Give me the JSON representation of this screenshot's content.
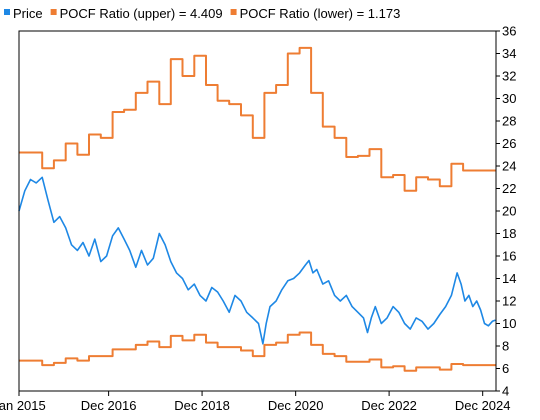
{
  "chart_data": {
    "type": "line",
    "title": "",
    "xlabel": "",
    "ylabel": "",
    "legend_position": "top-left",
    "grid": false,
    "x_range": [
      "2015-01-01",
      "2025-03-15"
    ],
    "y_range": [
      4,
      36
    ],
    "y_ticks": [
      4,
      6,
      8,
      10,
      12,
      14,
      16,
      18,
      20,
      22,
      24,
      26,
      28,
      30,
      32,
      34,
      36
    ],
    "y_axis_side": "right",
    "x_ticks": [
      {
        "label": "Jan 2015",
        "date": "2015-01-01"
      },
      {
        "label": "Dec 2016",
        "date": "2016-12-01"
      },
      {
        "label": "Dec 2018",
        "date": "2018-12-01"
      },
      {
        "label": "Dec 2020",
        "date": "2020-12-01"
      },
      {
        "label": "Dec 2022",
        "date": "2022-12-01"
      },
      {
        "label": "Dec 2024",
        "date": "2024-12-01"
      }
    ],
    "series": [
      {
        "name": "Price",
        "legend_label": "Price",
        "color": "#1e88e5",
        "style": "line",
        "points": [
          [
            "2015-01-01",
            20.0
          ],
          [
            "2015-02-15",
            21.8
          ],
          [
            "2015-04-01",
            22.8
          ],
          [
            "2015-05-15",
            22.5
          ],
          [
            "2015-07-01",
            23.0
          ],
          [
            "2015-08-15",
            21.0
          ],
          [
            "2015-10-01",
            19.0
          ],
          [
            "2015-11-15",
            19.5
          ],
          [
            "2016-01-01",
            18.5
          ],
          [
            "2016-02-15",
            17.0
          ],
          [
            "2016-04-01",
            16.5
          ],
          [
            "2016-05-15",
            17.2
          ],
          [
            "2016-07-01",
            16.0
          ],
          [
            "2016-08-15",
            17.5
          ],
          [
            "2016-10-01",
            15.5
          ],
          [
            "2016-11-15",
            16.0
          ],
          [
            "2017-01-01",
            17.8
          ],
          [
            "2017-02-15",
            18.5
          ],
          [
            "2017-04-01",
            17.5
          ],
          [
            "2017-05-15",
            16.5
          ],
          [
            "2017-07-01",
            15.0
          ],
          [
            "2017-08-15",
            16.5
          ],
          [
            "2017-10-01",
            15.2
          ],
          [
            "2017-11-15",
            15.8
          ],
          [
            "2018-01-01",
            18.0
          ],
          [
            "2018-02-15",
            17.0
          ],
          [
            "2018-04-01",
            15.5
          ],
          [
            "2018-05-15",
            14.5
          ],
          [
            "2018-07-01",
            14.0
          ],
          [
            "2018-08-15",
            13.0
          ],
          [
            "2018-10-01",
            13.5
          ],
          [
            "2018-11-15",
            12.5
          ],
          [
            "2019-01-01",
            12.0
          ],
          [
            "2019-02-15",
            13.2
          ],
          [
            "2019-04-01",
            12.8
          ],
          [
            "2019-05-15",
            12.0
          ],
          [
            "2019-07-01",
            11.0
          ],
          [
            "2019-08-15",
            12.5
          ],
          [
            "2019-10-01",
            12.0
          ],
          [
            "2019-11-15",
            11.0
          ],
          [
            "2020-01-01",
            10.5
          ],
          [
            "2020-02-15",
            10.0
          ],
          [
            "2020-03-20",
            8.2
          ],
          [
            "2020-04-15",
            10.0
          ],
          [
            "2020-05-15",
            11.5
          ],
          [
            "2020-07-01",
            12.0
          ],
          [
            "2020-08-15",
            13.0
          ],
          [
            "2020-10-01",
            13.8
          ],
          [
            "2020-11-15",
            14.0
          ],
          [
            "2021-01-01",
            14.5
          ],
          [
            "2021-02-15",
            15.2
          ],
          [
            "2021-03-15",
            15.6
          ],
          [
            "2021-04-15",
            14.5
          ],
          [
            "2021-05-15",
            14.8
          ],
          [
            "2021-07-01",
            13.5
          ],
          [
            "2021-08-15",
            13.8
          ],
          [
            "2021-10-01",
            12.5
          ],
          [
            "2021-11-15",
            12.0
          ],
          [
            "2022-01-01",
            12.5
          ],
          [
            "2022-02-15",
            11.5
          ],
          [
            "2022-04-01",
            11.0
          ],
          [
            "2022-05-15",
            10.5
          ],
          [
            "2022-06-15",
            9.2
          ],
          [
            "2022-07-15",
            10.5
          ],
          [
            "2022-08-15",
            11.5
          ],
          [
            "2022-10-01",
            10.0
          ],
          [
            "2022-11-15",
            10.5
          ],
          [
            "2023-01-01",
            11.5
          ],
          [
            "2023-02-15",
            11.0
          ],
          [
            "2023-04-01",
            10.0
          ],
          [
            "2023-05-15",
            9.5
          ],
          [
            "2023-07-01",
            10.5
          ],
          [
            "2023-08-15",
            10.2
          ],
          [
            "2023-10-01",
            9.5
          ],
          [
            "2023-11-15",
            10.0
          ],
          [
            "2024-01-01",
            10.8
          ],
          [
            "2024-02-15",
            11.5
          ],
          [
            "2024-04-01",
            12.5
          ],
          [
            "2024-05-15",
            14.5
          ],
          [
            "2024-06-15",
            13.5
          ],
          [
            "2024-07-15",
            12.0
          ],
          [
            "2024-08-15",
            12.5
          ],
          [
            "2024-09-15",
            11.5
          ],
          [
            "2024-10-15",
            12.0
          ],
          [
            "2024-11-15",
            11.2
          ],
          [
            "2024-12-15",
            10.0
          ],
          [
            "2025-01-15",
            9.8
          ],
          [
            "2025-02-15",
            10.2
          ],
          [
            "2025-03-10",
            10.3
          ]
        ]
      },
      {
        "name": "POCF Ratio (upper) = 4.409",
        "legend_label": "POCF Ratio (upper) = 4.409",
        "color": "#ee7d33",
        "style": "step",
        "points": [
          [
            "2015-01-01",
            25.2
          ],
          [
            "2015-07-01",
            23.8
          ],
          [
            "2015-10-01",
            24.5
          ],
          [
            "2016-01-01",
            26.0
          ],
          [
            "2016-04-01",
            25.0
          ],
          [
            "2016-07-01",
            26.8
          ],
          [
            "2016-10-01",
            26.5
          ],
          [
            "2017-01-01",
            28.8
          ],
          [
            "2017-04-01",
            29.0
          ],
          [
            "2017-07-01",
            30.5
          ],
          [
            "2017-10-01",
            31.5
          ],
          [
            "2018-01-01",
            29.5
          ],
          [
            "2018-04-01",
            33.5
          ],
          [
            "2018-07-01",
            32.0
          ],
          [
            "2018-10-01",
            33.8
          ],
          [
            "2019-01-01",
            31.2
          ],
          [
            "2019-04-01",
            29.8
          ],
          [
            "2019-07-01",
            29.5
          ],
          [
            "2019-10-01",
            28.5
          ],
          [
            "2020-01-01",
            26.5
          ],
          [
            "2020-04-01",
            30.5
          ],
          [
            "2020-07-01",
            31.2
          ],
          [
            "2020-10-01",
            34.0
          ],
          [
            "2021-01-01",
            34.5
          ],
          [
            "2021-04-01",
            30.5
          ],
          [
            "2021-07-01",
            27.5
          ],
          [
            "2021-10-01",
            26.5
          ],
          [
            "2022-01-01",
            24.8
          ],
          [
            "2022-04-01",
            24.9
          ],
          [
            "2022-07-01",
            25.5
          ],
          [
            "2022-10-01",
            23.0
          ],
          [
            "2023-01-01",
            23.2
          ],
          [
            "2023-04-01",
            21.8
          ],
          [
            "2023-07-01",
            23.0
          ],
          [
            "2023-10-01",
            22.8
          ],
          [
            "2024-01-01",
            22.2
          ],
          [
            "2024-04-01",
            24.2
          ],
          [
            "2024-07-01",
            23.6
          ],
          [
            "2024-10-01",
            23.6
          ],
          [
            "2025-03-15",
            23.6
          ]
        ]
      },
      {
        "name": "POCF Ratio (lower) = 1.173",
        "legend_label": "POCF Ratio (lower) = 1.173",
        "color": "#ee7d33",
        "style": "step",
        "points": [
          [
            "2015-01-01",
            6.7
          ],
          [
            "2015-07-01",
            6.3
          ],
          [
            "2015-10-01",
            6.5
          ],
          [
            "2016-01-01",
            6.9
          ],
          [
            "2016-04-01",
            6.7
          ],
          [
            "2016-07-01",
            7.1
          ],
          [
            "2016-10-01",
            7.1
          ],
          [
            "2017-01-01",
            7.7
          ],
          [
            "2017-04-01",
            7.7
          ],
          [
            "2017-07-01",
            8.1
          ],
          [
            "2017-10-01",
            8.4
          ],
          [
            "2018-01-01",
            7.9
          ],
          [
            "2018-04-01",
            8.9
          ],
          [
            "2018-07-01",
            8.5
          ],
          [
            "2018-10-01",
            9.0
          ],
          [
            "2019-01-01",
            8.3
          ],
          [
            "2019-04-01",
            7.9
          ],
          [
            "2019-07-01",
            7.9
          ],
          [
            "2019-10-01",
            7.6
          ],
          [
            "2020-01-01",
            7.1
          ],
          [
            "2020-04-01",
            8.1
          ],
          [
            "2020-07-01",
            8.3
          ],
          [
            "2020-10-01",
            9.0
          ],
          [
            "2021-01-01",
            9.2
          ],
          [
            "2021-04-01",
            8.1
          ],
          [
            "2021-07-01",
            7.3
          ],
          [
            "2021-10-01",
            7.1
          ],
          [
            "2022-01-01",
            6.6
          ],
          [
            "2022-04-01",
            6.6
          ],
          [
            "2022-07-01",
            6.8
          ],
          [
            "2022-10-01",
            6.1
          ],
          [
            "2023-01-01",
            6.2
          ],
          [
            "2023-04-01",
            5.8
          ],
          [
            "2023-07-01",
            6.1
          ],
          [
            "2023-10-01",
            6.1
          ],
          [
            "2024-01-01",
            5.9
          ],
          [
            "2024-04-01",
            6.4
          ],
          [
            "2024-07-01",
            6.3
          ],
          [
            "2024-10-01",
            6.3
          ],
          [
            "2025-03-15",
            6.3
          ]
        ]
      }
    ]
  }
}
